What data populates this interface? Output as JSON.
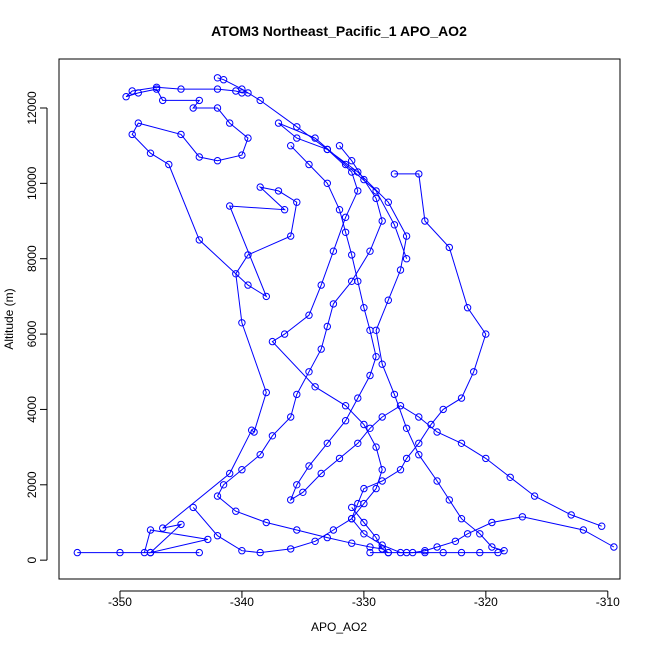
{
  "chart_data": {
    "type": "line",
    "title": "ATOM3 Northeast_Pacific_1 APO_AO2",
    "xlabel": "APO_AO2",
    "ylabel": "Altitude (m)",
    "xlim": [
      -355,
      -309
    ],
    "ylim": [
      -500,
      13300
    ],
    "xticks": [
      -350,
      -340,
      -330,
      -320,
      -310
    ],
    "yticks": [
      0,
      2000,
      4000,
      6000,
      8000,
      10000,
      12000
    ],
    "grid": false,
    "color": "#0000ff",
    "marker": "open-circle",
    "series": [
      {
        "x": [
          -353.5,
          -343.5,
          -350,
          -347.5,
          -348,
          -347.5,
          -342.8,
          -347.5,
          -345.0,
          -346.5,
          -341.0,
          -339.2,
          -339.0,
          -338.0,
          -340.0,
          -340.5,
          -339.5,
          -336.0,
          -335.5,
          -337.0,
          -338.5,
          -336.5,
          -341.0,
          -338.0,
          -339.5,
          -343.5,
          -346.0,
          -347.5,
          -349.0,
          -348.5,
          -345.0,
          -343.5,
          -342.0,
          -340.0,
          -339.5,
          -341.0,
          -342.0,
          -344.0,
          -343.5,
          -346.5,
          -347.0,
          -348.5,
          -349.5,
          -349.0,
          -347.0,
          -345.0,
          -342.0,
          -340.5,
          -340.0,
          -339.5
        ],
        "y": [
          200,
          200,
          200,
          200,
          200,
          800,
          550,
          200,
          950,
          850,
          2300,
          3450,
          3400,
          4450,
          6300,
          7600,
          8100,
          8600,
          9500,
          9800,
          9900,
          9300,
          9400,
          7000,
          7300,
          8500,
          10500,
          10800,
          11300,
          11600,
          11300,
          10700,
          10600,
          10750,
          11200,
          11600,
          12000,
          12000,
          12200,
          12200,
          12500,
          12400,
          12300,
          12450,
          12550,
          12500,
          12500,
          12450,
          12400,
          12400
        ]
      },
      {
        "x": [
          -342.0,
          -341.5,
          -340.0,
          -338.5,
          -335.5,
          -333.0,
          -331.0,
          -330.5,
          -331.5,
          -332.5,
          -333.5,
          -334.5,
          -336.5,
          -337.5,
          -334.0,
          -331.5,
          -330.0,
          -329.0,
          -328.5,
          -329.0,
          -330.0,
          -331.0,
          -332.5,
          -334.0,
          -336.0,
          -338.5,
          -340.0,
          -342.0,
          -344.0
        ],
        "y": [
          12800,
          12750,
          12500,
          12200,
          11500,
          10900,
          10300,
          9800,
          9100,
          8200,
          7300,
          6500,
          6000,
          5800,
          4600,
          4100,
          3600,
          3000,
          2400,
          1900,
          1500,
          1100,
          800,
          500,
          300,
          200,
          250,
          650,
          1400
        ]
      },
      {
        "x": [
          -327.5,
          -325.5,
          -325.0,
          -323.0,
          -321.5,
          -320.0,
          -321.0,
          -322.0,
          -323.5,
          -324.5,
          -325.5,
          -326.5,
          -327.0,
          -328.5,
          -330.0,
          -330.5,
          -331.0,
          -330.0,
          -328.5,
          -327.0,
          -326.0,
          -325.0,
          -324.0,
          -322.5,
          -321.5,
          -319.5,
          -317.0,
          -312.0,
          -309.5
        ],
        "y": [
          10250,
          10250,
          9000,
          8300,
          6700,
          6000,
          5000,
          4300,
          4000,
          3600,
          3100,
          2700,
          2400,
          2100,
          1900,
          1500,
          1100,
          700,
          400,
          200,
          200,
          250,
          350,
          500,
          700,
          1000,
          1150,
          800,
          350
        ]
      },
      {
        "x": [
          -329.5,
          -328.0,
          -326.5,
          -325.0,
          -323.5,
          -322.0,
          -320.5,
          -319.0,
          -318.5,
          -319.5,
          -320.5,
          -322.0,
          -323.0,
          -324.0,
          -325.5,
          -326.5,
          -327.5,
          -328.5,
          -329.0,
          -328.0,
          -327.0,
          -326.5,
          -328.0,
          -330.5,
          -333.0,
          -335.5,
          -337.0,
          -334.0,
          -331.5,
          -329.0,
          -327.5,
          -326.5
        ],
        "y": [
          200,
          200,
          200,
          200,
          200,
          200,
          200,
          200,
          250,
          350,
          700,
          1100,
          1600,
          2100,
          2800,
          3500,
          4400,
          5200,
          6100,
          6900,
          7700,
          8600,
          9500,
          10300,
          10900,
          11200,
          11600,
          11200,
          10500,
          9800,
          8900,
          8000
        ]
      },
      {
        "x": [
          -332.0,
          -331.0,
          -330.0,
          -329.0,
          -328.5,
          -329.5,
          -331.0,
          -332.5,
          -333.0,
          -333.5,
          -334.5,
          -335.5,
          -336.0,
          -337.5,
          -338.5,
          -340.0,
          -341.5,
          -342.0,
          -340.5,
          -338.0,
          -335.5,
          -333.0,
          -331.0,
          -329.5,
          -328.5,
          -328.0,
          -328.5,
          -329.0,
          -330.0,
          -331.0
        ],
        "y": [
          11000,
          10600,
          10100,
          9600,
          9000,
          8200,
          7400,
          6800,
          6200,
          5600,
          5000,
          4400,
          3800,
          3300,
          2800,
          2400,
          2000,
          1700,
          1300,
          1000,
          800,
          600,
          450,
          350,
          300,
          200,
          300,
          600,
          1000,
          1400
        ]
      },
      {
        "x": [
          -336.0,
          -334.5,
          -333.0,
          -332.0,
          -331.5,
          -331.0,
          -330.5,
          -330.0,
          -329.5,
          -329.0,
          -329.5,
          -330.5,
          -331.5,
          -333.0,
          -334.5,
          -335.5,
          -336.0,
          -335.0,
          -333.5,
          -332.0,
          -330.5,
          -329.5,
          -328.5,
          -327.0,
          -325.5,
          -324.0,
          -322.0,
          -320.0,
          -318.0,
          -316.0,
          -313.0,
          -310.5
        ],
        "y": [
          11000,
          10500,
          10000,
          9300,
          8700,
          8100,
          7400,
          6700,
          6100,
          5400,
          4900,
          4300,
          3700,
          3100,
          2500,
          2000,
          1600,
          1800,
          2300,
          2700,
          3100,
          3500,
          3800,
          4100,
          3800,
          3400,
          3100,
          2700,
          2200,
          1700,
          1200,
          900
        ]
      }
    ]
  }
}
